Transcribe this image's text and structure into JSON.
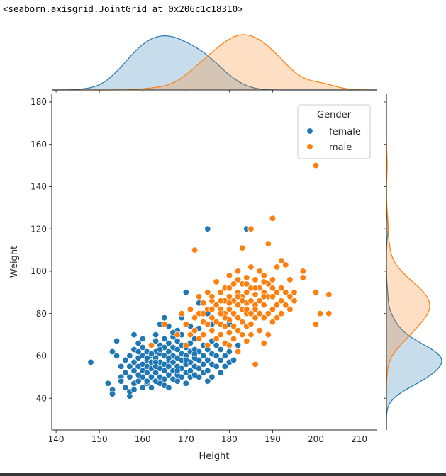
{
  "output_repr": "<seaborn.axisgrid.JointGrid at 0x206c1c18310>",
  "chart_data": {
    "type": "scatter",
    "xlabel": "Height",
    "ylabel": "Weight",
    "xlim": [
      139,
      214
    ],
    "ylim": [
      25,
      184
    ],
    "xticks": [
      140,
      150,
      160,
      170,
      180,
      190,
      200,
      210
    ],
    "yticks": [
      40,
      60,
      80,
      100,
      120,
      140,
      160,
      180
    ],
    "grid": false,
    "legend": {
      "title": "Gender",
      "placement": "top-right"
    },
    "marginals": "kde",
    "series": [
      {
        "name": "female",
        "color": "#1f77b4",
        "points": [
          [
            148,
            57
          ],
          [
            152,
            47
          ],
          [
            153,
            44
          ],
          [
            153,
            42
          ],
          [
            153,
            62
          ],
          [
            154,
            67
          ],
          [
            154,
            60
          ],
          [
            155,
            55
          ],
          [
            155,
            50
          ],
          [
            155,
            48
          ],
          [
            156,
            45
          ],
          [
            156,
            58
          ],
          [
            156,
            52
          ],
          [
            157,
            41
          ],
          [
            157,
            43
          ],
          [
            157,
            50
          ],
          [
            157,
            55
          ],
          [
            157,
            60
          ],
          [
            158,
            44
          ],
          [
            158,
            47
          ],
          [
            158,
            53
          ],
          [
            158,
            57
          ],
          [
            158,
            63
          ],
          [
            158,
            70
          ],
          [
            159,
            48
          ],
          [
            159,
            51
          ],
          [
            159,
            55
          ],
          [
            159,
            59
          ],
          [
            159,
            62
          ],
          [
            160,
            45
          ],
          [
            160,
            50
          ],
          [
            160,
            53
          ],
          [
            160,
            56
          ],
          [
            160,
            60
          ],
          [
            160,
            64
          ],
          [
            160,
            68
          ],
          [
            161,
            47
          ],
          [
            161,
            52
          ],
          [
            161,
            55
          ],
          [
            161,
            58
          ],
          [
            161,
            62
          ],
          [
            161,
            48
          ],
          [
            162,
            50
          ],
          [
            162,
            54
          ],
          [
            162,
            57
          ],
          [
            162,
            60
          ],
          [
            162,
            65
          ],
          [
            162,
            45
          ],
          [
            163,
            48
          ],
          [
            163,
            52
          ],
          [
            163,
            55
          ],
          [
            163,
            59
          ],
          [
            163,
            62
          ],
          [
            163,
            67
          ],
          [
            163,
            70
          ],
          [
            164,
            47
          ],
          [
            164,
            50
          ],
          [
            164,
            54
          ],
          [
            164,
            57
          ],
          [
            164,
            61
          ],
          [
            164,
            65
          ],
          [
            164,
            75
          ],
          [
            165,
            46
          ],
          [
            165,
            49
          ],
          [
            165,
            53
          ],
          [
            165,
            56
          ],
          [
            165,
            60
          ],
          [
            165,
            64
          ],
          [
            165,
            68
          ],
          [
            165,
            78
          ],
          [
            166,
            45
          ],
          [
            166,
            51
          ],
          [
            166,
            55
          ],
          [
            166,
            58
          ],
          [
            166,
            62
          ],
          [
            166,
            66
          ],
          [
            166,
            74
          ],
          [
            167,
            49
          ],
          [
            167,
            53
          ],
          [
            167,
            57
          ],
          [
            167,
            60
          ],
          [
            167,
            64
          ],
          [
            167,
            69
          ],
          [
            168,
            48
          ],
          [
            168,
            51
          ],
          [
            168,
            55
          ],
          [
            168,
            59
          ],
          [
            168,
            63
          ],
          [
            168,
            67
          ],
          [
            168,
            72
          ],
          [
            169,
            50
          ],
          [
            169,
            54
          ],
          [
            169,
            58
          ],
          [
            169,
            61
          ],
          [
            169,
            65
          ],
          [
            169,
            70
          ],
          [
            169,
            78
          ],
          [
            170,
            47
          ],
          [
            170,
            52
          ],
          [
            170,
            56
          ],
          [
            170,
            60
          ],
          [
            170,
            64
          ],
          [
            170,
            90
          ],
          [
            171,
            50
          ],
          [
            171,
            53
          ],
          [
            171,
            57
          ],
          [
            171,
            62
          ],
          [
            171,
            66
          ],
          [
            171,
            74
          ],
          [
            172,
            51
          ],
          [
            172,
            55
          ],
          [
            172,
            59
          ],
          [
            172,
            63
          ],
          [
            172,
            68
          ],
          [
            173,
            50
          ],
          [
            173,
            54
          ],
          [
            173,
            58
          ],
          [
            173,
            62
          ],
          [
            173,
            73
          ],
          [
            173,
            85
          ],
          [
            174,
            52
          ],
          [
            174,
            56
          ],
          [
            174,
            60
          ],
          [
            174,
            65
          ],
          [
            174,
            70
          ],
          [
            175,
            48
          ],
          [
            175,
            53
          ],
          [
            175,
            58
          ],
          [
            175,
            63
          ],
          [
            175,
            80
          ],
          [
            175,
            120
          ],
          [
            176,
            50
          ],
          [
            176,
            56
          ],
          [
            176,
            61
          ],
          [
            176,
            67
          ],
          [
            176,
            75
          ],
          [
            177,
            55
          ],
          [
            177,
            60
          ],
          [
            177,
            65
          ],
          [
            178,
            52
          ],
          [
            178,
            58
          ],
          [
            178,
            63
          ],
          [
            179,
            55
          ],
          [
            179,
            60
          ],
          [
            180,
            57
          ],
          [
            180,
            62
          ],
          [
            180,
            75
          ],
          [
            181,
            58
          ],
          [
            182,
            65
          ],
          [
            184,
            120
          ],
          [
            162,
            61
          ],
          [
            164,
            63
          ],
          [
            166,
            59
          ],
          [
            167,
            71
          ],
          [
            168,
            53
          ],
          [
            170,
            58
          ],
          [
            172,
            61
          ],
          [
            159,
            66
          ],
          [
            161,
            59
          ],
          [
            163,
            57
          ]
        ]
      },
      {
        "name": "male",
        "color": "#ff7f0e",
        "points": [
          [
            162,
            65
          ],
          [
            165,
            75
          ],
          [
            168,
            70
          ],
          [
            169,
            80
          ],
          [
            170,
            75
          ],
          [
            170,
            65
          ],
          [
            171,
            82
          ],
          [
            171,
            70
          ],
          [
            172,
            110
          ],
          [
            172,
            78
          ],
          [
            172,
            72
          ],
          [
            173,
            88
          ],
          [
            173,
            80
          ],
          [
            173,
            68
          ],
          [
            174,
            85
          ],
          [
            174,
            76
          ],
          [
            174,
            70
          ],
          [
            175,
            90
          ],
          [
            175,
            82
          ],
          [
            175,
            75
          ],
          [
            175,
            65
          ],
          [
            176,
            86
          ],
          [
            176,
            78
          ],
          [
            176,
            72
          ],
          [
            177,
            95
          ],
          [
            177,
            84
          ],
          [
            177,
            76
          ],
          [
            177,
            68
          ],
          [
            178,
            90
          ],
          [
            178,
            82
          ],
          [
            178,
            75
          ],
          [
            178,
            70
          ],
          [
            179,
            92
          ],
          [
            179,
            86
          ],
          [
            179,
            80
          ],
          [
            179,
            74
          ],
          [
            179,
            66
          ],
          [
            180,
            98
          ],
          [
            180,
            88
          ],
          [
            180,
            82
          ],
          [
            180,
            77
          ],
          [
            180,
            71
          ],
          [
            180,
            65
          ],
          [
            181,
            94
          ],
          [
            181,
            86
          ],
          [
            181,
            80
          ],
          [
            181,
            74
          ],
          [
            181,
            68
          ],
          [
            182,
            100
          ],
          [
            182,
            90
          ],
          [
            182,
            84
          ],
          [
            182,
            78
          ],
          [
            182,
            72
          ],
          [
            182,
            62
          ],
          [
            183,
            111
          ],
          [
            183,
            94
          ],
          [
            183,
            88
          ],
          [
            183,
            82
          ],
          [
            183,
            76
          ],
          [
            183,
            70
          ],
          [
            184,
            97
          ],
          [
            184,
            90
          ],
          [
            184,
            85
          ],
          [
            184,
            80
          ],
          [
            184,
            74
          ],
          [
            184,
            67
          ],
          [
            185,
            120
          ],
          [
            185,
            102
          ],
          [
            185,
            92
          ],
          [
            185,
            86
          ],
          [
            185,
            80
          ],
          [
            185,
            75
          ],
          [
            185,
            70
          ],
          [
            186,
            96
          ],
          [
            186,
            89
          ],
          [
            186,
            84
          ],
          [
            186,
            78
          ],
          [
            186,
            56
          ],
          [
            187,
            100
          ],
          [
            187,
            92
          ],
          [
            187,
            86
          ],
          [
            187,
            80
          ],
          [
            187,
            72
          ],
          [
            188,
            98
          ],
          [
            188,
            90
          ],
          [
            188,
            84
          ],
          [
            188,
            78
          ],
          [
            188,
            66
          ],
          [
            189,
            113
          ],
          [
            189,
            94
          ],
          [
            189,
            88
          ],
          [
            189,
            80
          ],
          [
            189,
            70
          ],
          [
            190,
            125
          ],
          [
            190,
            96
          ],
          [
            190,
            88
          ],
          [
            190,
            82
          ],
          [
            190,
            76
          ],
          [
            191,
            102
          ],
          [
            191,
            90
          ],
          [
            191,
            84
          ],
          [
            191,
            78
          ],
          [
            192,
            105
          ],
          [
            192,
            92
          ],
          [
            192,
            86
          ],
          [
            192,
            80
          ],
          [
            193,
            103
          ],
          [
            193,
            90
          ],
          [
            193,
            84
          ],
          [
            194,
            96
          ],
          [
            194,
            88
          ],
          [
            194,
            82
          ],
          [
            195,
            90
          ],
          [
            195,
            86
          ],
          [
            197,
            100
          ],
          [
            197,
            97
          ],
          [
            200,
            90
          ],
          [
            200,
            75
          ],
          [
            200,
            150
          ],
          [
            201,
            80
          ],
          [
            203,
            89
          ],
          [
            203,
            80
          ],
          [
            176,
            82
          ],
          [
            178,
            86
          ],
          [
            180,
            85
          ],
          [
            182,
            96
          ],
          [
            184,
            94
          ],
          [
            186,
            92
          ],
          [
            188,
            95
          ],
          [
            190,
            92
          ],
          [
            174,
            80
          ],
          [
            176,
            88
          ],
          [
            178,
            80
          ],
          [
            180,
            92
          ],
          [
            182,
            88
          ],
          [
            184,
            82
          ],
          [
            186,
            82
          ],
          [
            188,
            88
          ],
          [
            179,
            78
          ],
          [
            183,
            86
          ]
        ]
      }
    ]
  }
}
